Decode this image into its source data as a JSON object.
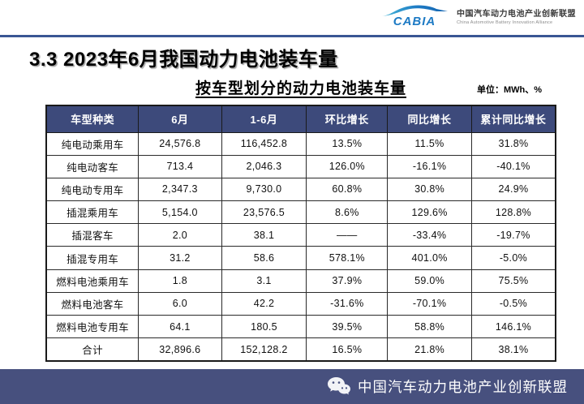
{
  "logo": {
    "brand": "CABIA",
    "org_cn": "中国汽车动力电池产业创新联盟",
    "org_en": "China Automotive Battery Innovation Alliance"
  },
  "page": {
    "section_title": "3.3 2023年6月我国动力电池装车量",
    "table_title": "按车型划分的动力电池装车量",
    "unit_label": "单位：MWh、%"
  },
  "table": {
    "headers": [
      "车型种类",
      "6月",
      "1-6月",
      "环比增长",
      "同比增长",
      "累计同比增长"
    ],
    "rows": [
      [
        "纯电动乘用车",
        "24,576.8",
        "116,452.8",
        "13.5%",
        "11.5%",
        "31.8%"
      ],
      [
        "纯电动客车",
        "713.4",
        "2,046.3",
        "126.0%",
        "-16.1%",
        "-40.1%"
      ],
      [
        "纯电动专用车",
        "2,347.3",
        "9,730.0",
        "60.8%",
        "30.8%",
        "24.9%"
      ],
      [
        "插混乘用车",
        "5,154.0",
        "23,576.5",
        "8.6%",
        "129.6%",
        "128.8%"
      ],
      [
        "插混客车",
        "2.0",
        "38.1",
        "——",
        "-33.4%",
        "-19.7%"
      ],
      [
        "插混专用车",
        "31.2",
        "58.6",
        "578.1%",
        "401.0%",
        "-5.0%"
      ],
      [
        "燃料电池乘用车",
        "1.8",
        "3.1",
        "37.9%",
        "59.0%",
        "75.5%"
      ],
      [
        "燃料电池客车",
        "6.0",
        "42.2",
        "-31.6%",
        "-70.1%",
        "-0.5%"
      ],
      [
        "燃料电池专用车",
        "64.1",
        "180.5",
        "39.5%",
        "58.8%",
        "146.1%"
      ],
      [
        "合计",
        "32,896.6",
        "152,128.2",
        "16.5%",
        "21.8%",
        "38.1%"
      ]
    ]
  },
  "footer": {
    "org_name": "中国汽车动力电池产业创新联盟"
  },
  "colors": {
    "header_bg": "#3d4a7b",
    "footer_bg": "#47507e",
    "accent_line": "#3a5694",
    "brand_blue": "#1d7ac4"
  }
}
